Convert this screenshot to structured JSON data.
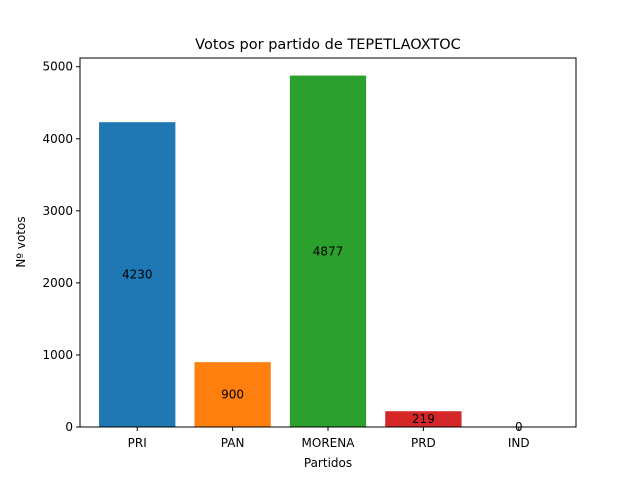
{
  "chart_data": {
    "type": "bar",
    "title": "Votos por partido de TEPETLAOXTOC",
    "xlabel": "Partidos",
    "ylabel": "Nº votos",
    "categories": [
      "PRI",
      "PAN",
      "MORENA",
      "PRD",
      "IND"
    ],
    "values": [
      4230,
      900,
      4877,
      219,
      0
    ],
    "data_labels": [
      "4230",
      "900",
      "4877",
      "219",
      "0"
    ],
    "colors": [
      "#1f77b4",
      "#ff7f0e",
      "#2ca02c",
      "#d62728",
      "#9467bd"
    ],
    "ylim": [
      0,
      5121
    ],
    "yticks": [
      0,
      1000,
      2000,
      3000,
      4000,
      5000
    ],
    "ytick_labels": [
      "0",
      "1000",
      "2000",
      "3000",
      "4000",
      "5000"
    ],
    "grid": false,
    "legend": "none"
  }
}
